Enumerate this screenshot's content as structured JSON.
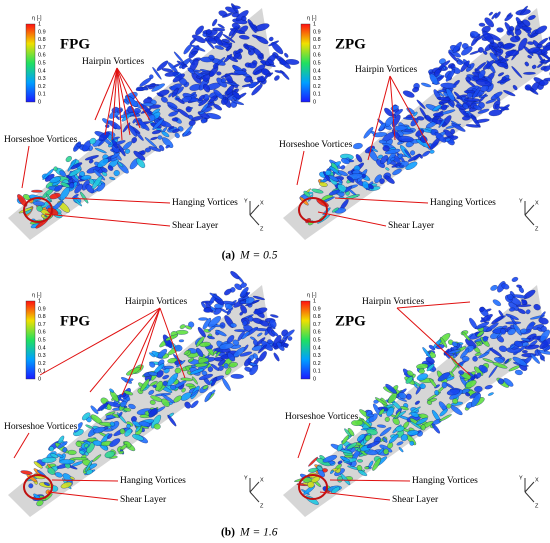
{
  "figure": {
    "panels": [
      {
        "title": "FPG",
        "colorbar": {
          "label": "η [-]",
          "ticks": [
            1,
            0.9,
            0.8,
            0.7,
            0.6,
            0.5,
            0.4,
            0.3,
            0.2,
            0.1,
            0
          ]
        },
        "annotations": [
          "Hairpin Vortices",
          "Horseshoe Vortices",
          "Hanging Vortices",
          "Shear Layer"
        ],
        "axes": [
          "Y",
          "X",
          "Z"
        ]
      },
      {
        "title": "ZPG",
        "colorbar": {
          "label": "η [-]",
          "ticks": [
            1,
            0.9,
            0.8,
            0.7,
            0.6,
            0.5,
            0.4,
            0.3,
            0.2,
            0.1,
            0
          ]
        },
        "annotations": [
          "Hairpin Vortices",
          "Horseshoe Vortices",
          "Hanging Vortices",
          "Shear Layer"
        ],
        "axes": [
          "Y",
          "X",
          "Z"
        ]
      },
      {
        "title": "FPG",
        "colorbar": {
          "label": "η [-]",
          "ticks": [
            1,
            0.9,
            0.8,
            0.7,
            0.6,
            0.5,
            0.4,
            0.3,
            0.2,
            0.1,
            0
          ]
        },
        "annotations": [
          "Hairpin Vortices",
          "Horseshoe Vortices",
          "Hanging Vortices",
          "Shear Layer"
        ],
        "axes": [
          "Y",
          "X",
          "Z"
        ]
      },
      {
        "title": "ZPG",
        "colorbar": {
          "label": "η [-]",
          "ticks": [
            1,
            0.9,
            0.8,
            0.7,
            0.6,
            0.5,
            0.4,
            0.3,
            0.2,
            0.1,
            0
          ]
        },
        "annotations": [
          "Hairpin Vortices",
          "Horseshoe Vortices",
          "Hanging Vortices",
          "Shear Layer"
        ],
        "axes": [
          "Y",
          "X",
          "Z"
        ]
      }
    ],
    "captions": [
      {
        "label": "(a)",
        "text": "M = 0.5"
      },
      {
        "label": "(b)",
        "text": "M = 1.6"
      }
    ]
  }
}
